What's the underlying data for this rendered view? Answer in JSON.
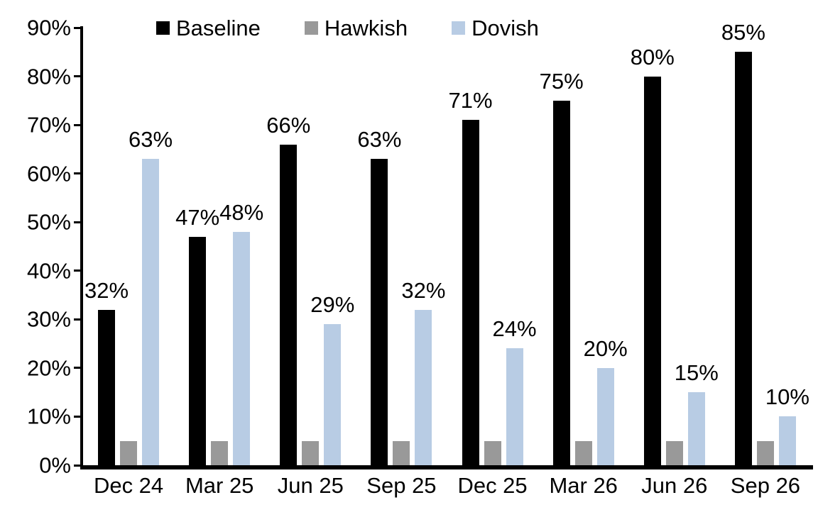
{
  "colors": {
    "background": "#ffffff",
    "axis": "#000000",
    "baseline": "#000000",
    "hawkish": "#999999",
    "dovish": "#b8cce4"
  },
  "chart_data": {
    "type": "bar",
    "title": "",
    "categories": [
      "Dec 24",
      "Mar 25",
      "Jun 25",
      "Sep 25",
      "Dec 25",
      "Mar 26",
      "Jun 26",
      "Sep 26"
    ],
    "series": [
      {
        "name": "Baseline",
        "color": "#000000",
        "values": [
          32,
          47,
          66,
          63,
          71,
          75,
          80,
          85
        ],
        "labels": [
          "32%",
          "47%",
          "66%",
          "63%",
          "71%",
          "75%",
          "80%",
          "85%"
        ],
        "show_labels": true
      },
      {
        "name": "Hawkish",
        "color": "#999999",
        "values": [
          5,
          5,
          5,
          5,
          5,
          5,
          5,
          5
        ],
        "labels": [],
        "show_labels": false
      },
      {
        "name": "Dovish",
        "color": "#b8cce4",
        "values": [
          63,
          48,
          29,
          32,
          24,
          20,
          15,
          10
        ],
        "labels": [
          "63%",
          "48%",
          "29%",
          "32%",
          "24%",
          "20%",
          "15%",
          "10%"
        ],
        "show_labels": true
      }
    ],
    "y_axis": {
      "min": 0,
      "max": 90,
      "step": 10,
      "tick_labels": [
        "0%",
        "10%",
        "20%",
        "30%",
        "40%",
        "50%",
        "60%",
        "70%",
        "80%",
        "90%"
      ]
    },
    "xlabel": "",
    "ylabel": "",
    "legend_position": "top",
    "grid": false
  }
}
